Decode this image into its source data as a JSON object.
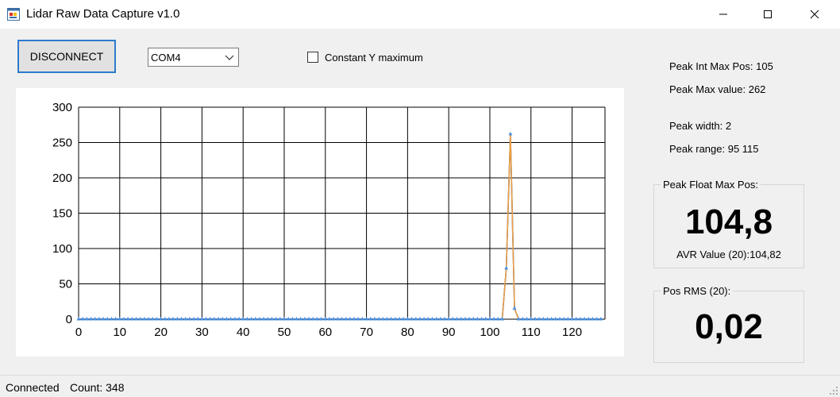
{
  "window": {
    "title": "Lidar Raw Data Capture v1.0",
    "icon": "app-icon",
    "controls": [
      "minimize-icon",
      "maximize-icon",
      "close-icon"
    ]
  },
  "toolbar": {
    "disconnect_label": "DISCONNECT",
    "port_selected": "COM4",
    "constant_y_label": "Constant Y maximum",
    "constant_y_checked": false
  },
  "info": {
    "peak_int_max_pos": "Peak Int Max Pos: 105",
    "peak_max_value": "Peak Max value: 262",
    "peak_width": "Peak width: 2",
    "peak_range": "Peak range: 95 115"
  },
  "peak_float": {
    "title": "Peak Float Max Pos:",
    "value": "104,8",
    "avr": "AVR Value (20):104,82"
  },
  "pos_rms": {
    "title": "Pos RMS (20):",
    "value": "0,02"
  },
  "status": {
    "connection": "Connected",
    "count": "Count: 348"
  },
  "colors": {
    "series1_line": "#1f4e9b",
    "series1_marker": "#4a90e2",
    "series2_line": "#f0a040",
    "accent": "#2b7bcc"
  },
  "chart_data": {
    "type": "line",
    "xlim": [
      0,
      128
    ],
    "ylim": [
      0,
      300
    ],
    "xticks": [
      0,
      10,
      20,
      30,
      40,
      50,
      60,
      70,
      80,
      90,
      100,
      110,
      120
    ],
    "yticks": [
      0,
      50,
      100,
      150,
      200,
      250,
      300
    ],
    "grid": true,
    "legend": "none",
    "peak_points": [
      {
        "x": 103,
        "y": 0
      },
      {
        "x": 104,
        "y": 72
      },
      {
        "x": 105,
        "y": 262
      },
      {
        "x": 106,
        "y": 15
      },
      {
        "x": 107,
        "y": 0
      }
    ],
    "baseline_y": 0,
    "samples": 128
  }
}
